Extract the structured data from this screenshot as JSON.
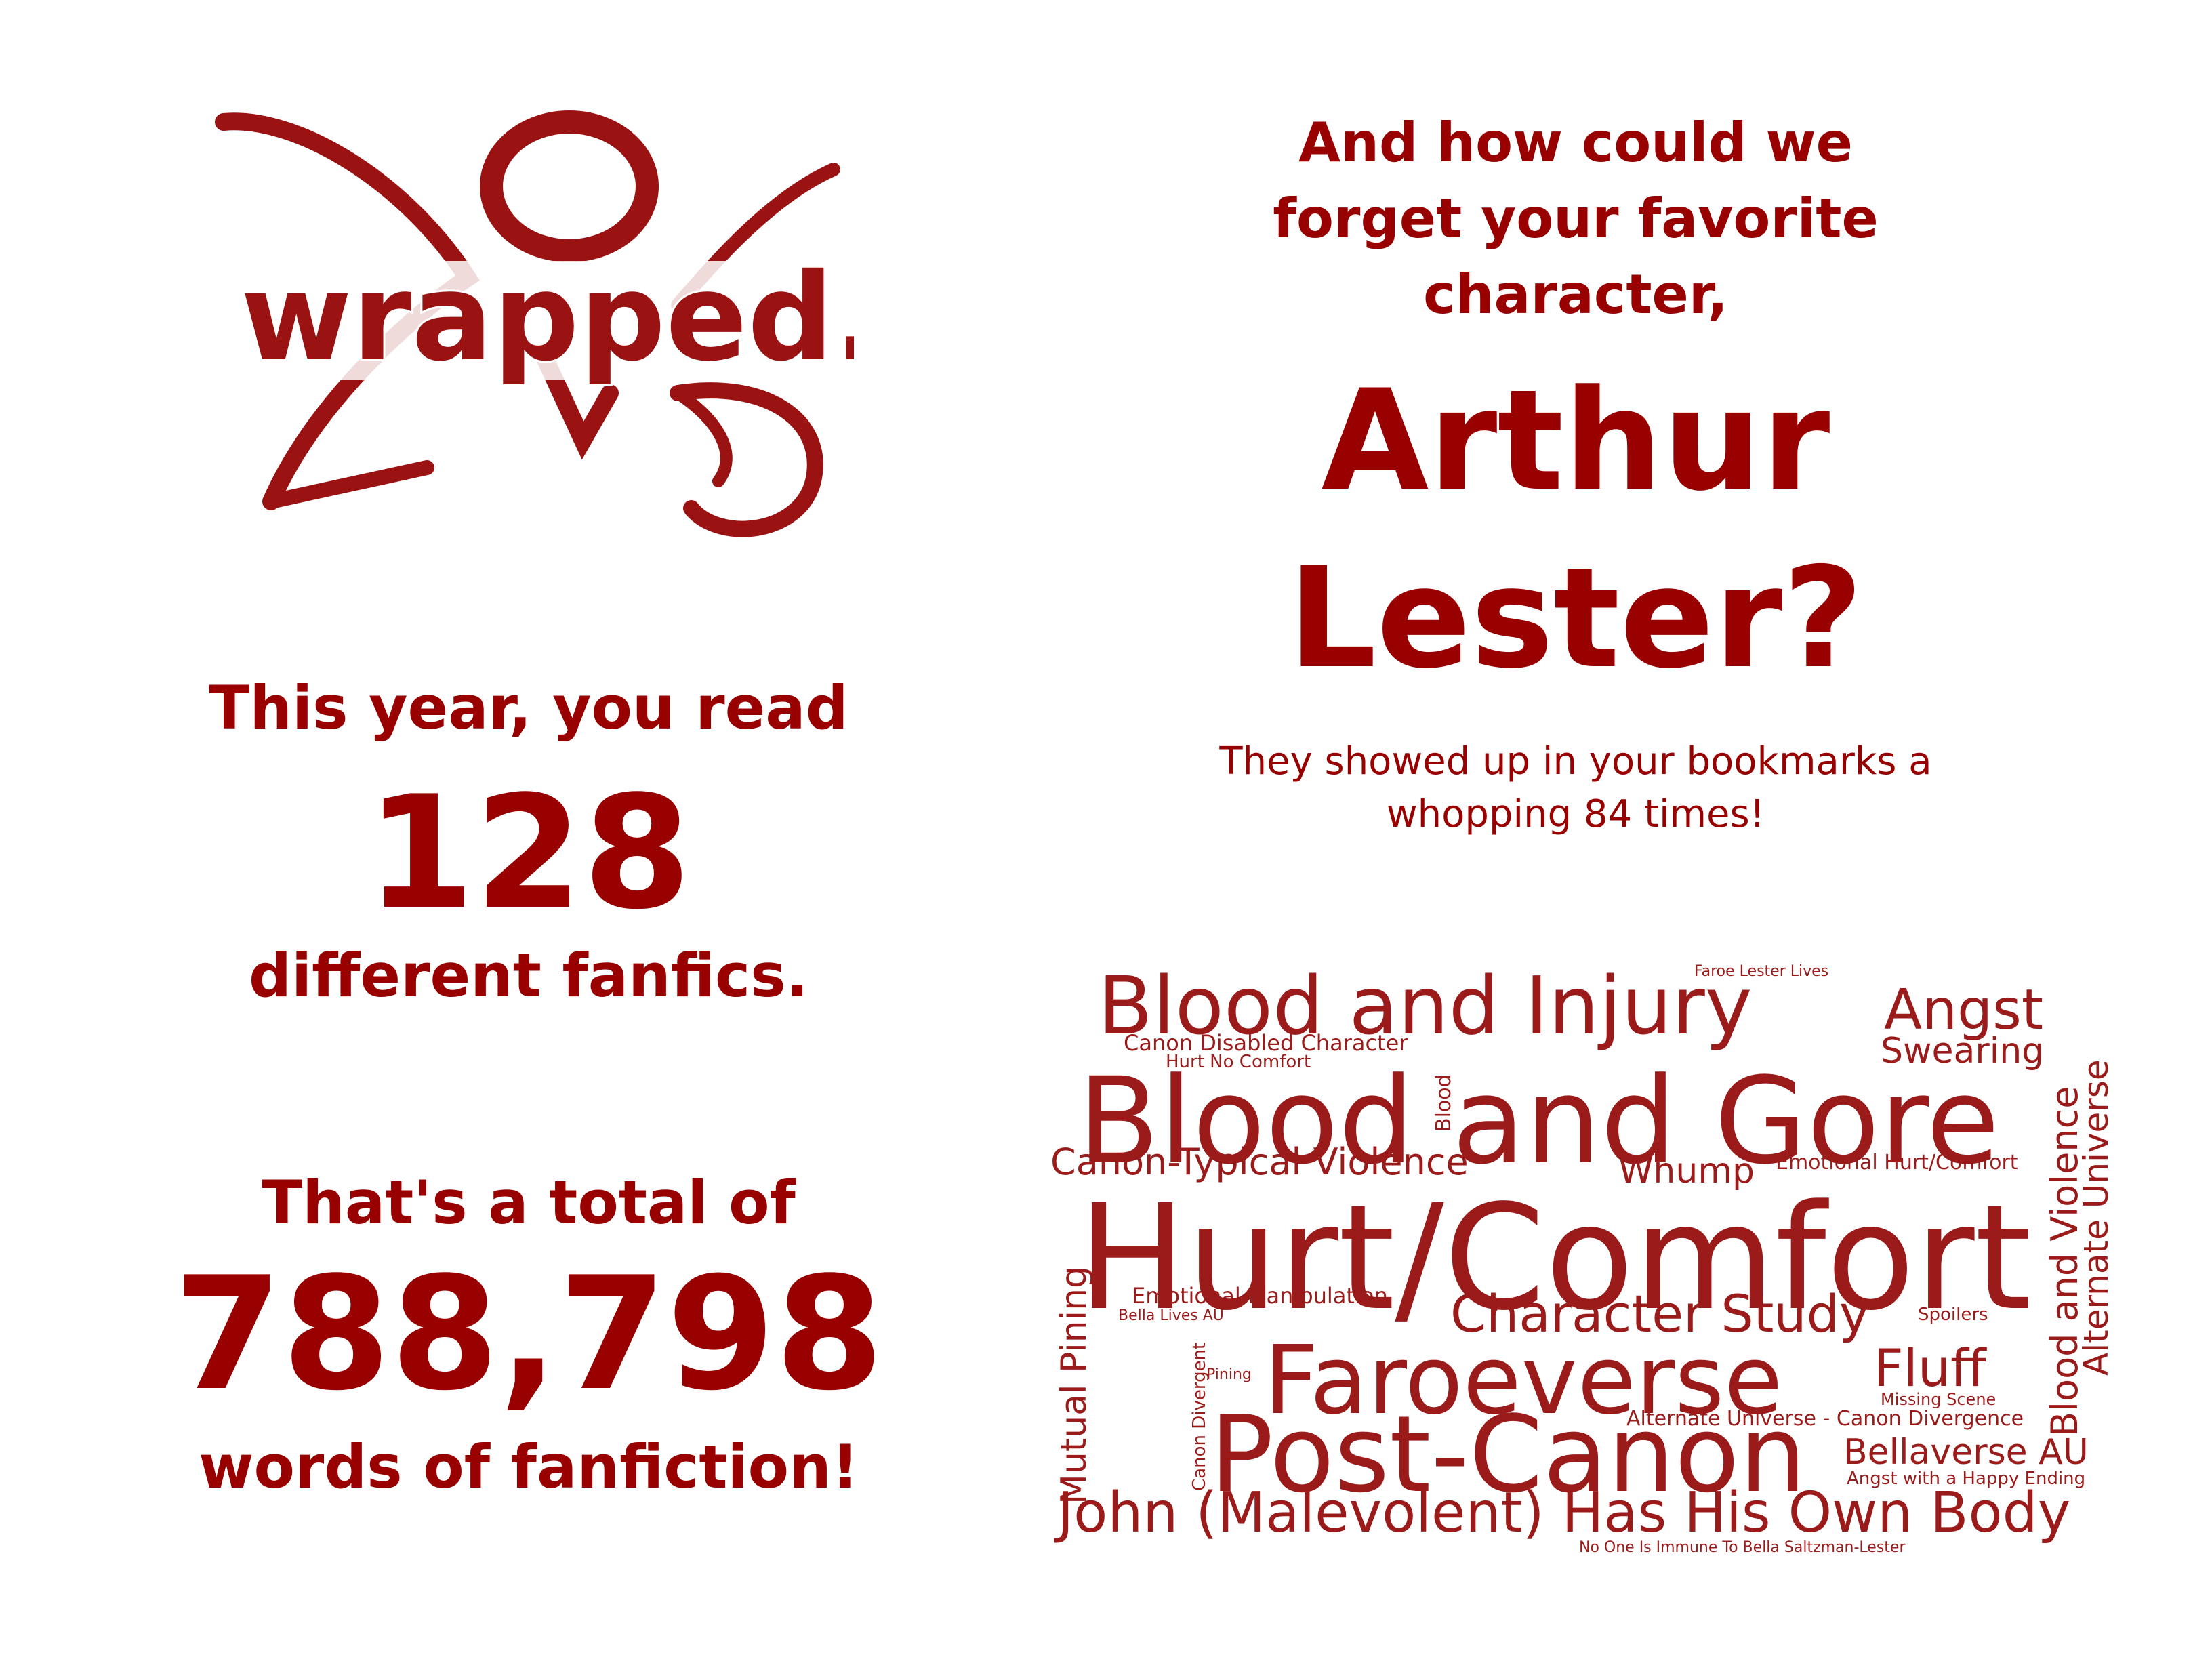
{
  "logo": {
    "wordmark": "wrapped.",
    "color": "#9b1212"
  },
  "stats": {
    "read_intro": "This year, you read",
    "read_count": "128",
    "read_outro": "different fanfics.",
    "total_intro": "That's a total of",
    "total_count": "788,798",
    "total_outro": "words of fanfiction!"
  },
  "favorite": {
    "question_line1": "And how could we",
    "question_line2": "forget your favorite",
    "question_line3": "character,",
    "name_line1": "Arthur",
    "name_line2": "Lester?",
    "note_line1": "They showed up in your bookmarks a",
    "note_line2": "whopping 84 times!"
  },
  "word_cloud": {
    "color": "#9b1b1b",
    "tags": [
      "Blood and Injury",
      "Faroe Lester Lives",
      "Angst",
      "Canon Disabled Character",
      "Hurt No Comfort",
      "Swearing",
      "Blood and Gore",
      "Blood",
      "Canon-Typical Violence",
      "Whump",
      "Emotional Hurt/Comfort",
      "Hurt/Comfort",
      "Blood and Violence",
      "Alternate Universe",
      "Mutual Pining",
      "Emotional Manipulation",
      "Bella Lives AU",
      "Character Study",
      "Spoilers",
      "Pining",
      "Faroeverse",
      "Fluff",
      "Canon Divergent",
      "Missing Scene",
      "Alternate Universe - Canon Divergence",
      "Post-Canon",
      "Bellaverse AU",
      "Angst with a Happy Ending",
      "John (Malevolent) Has His Own Body",
      "No One Is Immune To Bella Saltzman-Lester"
    ]
  }
}
